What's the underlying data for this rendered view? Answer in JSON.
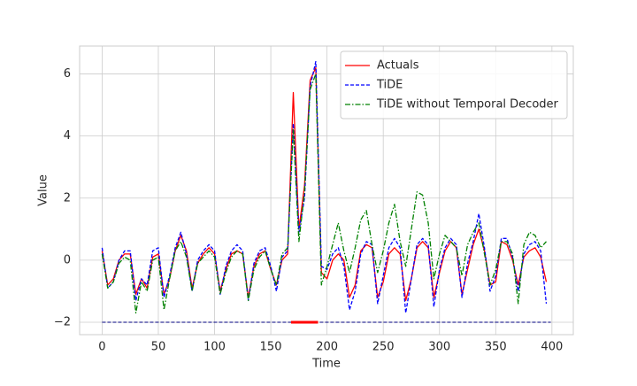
{
  "chart_data": {
    "type": "line",
    "xlabel": "Time",
    "ylabel": "Value",
    "x": [
      0,
      5,
      10,
      15,
      20,
      25,
      30,
      35,
      40,
      45,
      50,
      55,
      60,
      65,
      70,
      75,
      80,
      85,
      90,
      95,
      100,
      105,
      110,
      115,
      120,
      125,
      130,
      135,
      140,
      145,
      150,
      155,
      160,
      165,
      170,
      175,
      180,
      185,
      190,
      195,
      200,
      205,
      210,
      215,
      220,
      225,
      230,
      235,
      240,
      245,
      250,
      255,
      260,
      265,
      270,
      275,
      280,
      285,
      290,
      295,
      300,
      305,
      310,
      315,
      320,
      325,
      330,
      335,
      340,
      345,
      350,
      355,
      360,
      365,
      370,
      375,
      380,
      385,
      390,
      395
    ],
    "series": [
      {
        "name": "Actuals",
        "color": "#ff0000",
        "dash": "solid",
        "values": [
          0.3,
          -0.8,
          -0.6,
          0.0,
          0.2,
          0.2,
          -1.1,
          -0.6,
          -0.9,
          0.1,
          0.2,
          -1.1,
          -0.6,
          0.3,
          0.8,
          0.3,
          -0.9,
          -0.1,
          0.2,
          0.4,
          0.2,
          -1.0,
          -0.3,
          0.2,
          0.3,
          0.2,
          -1.2,
          -0.2,
          0.2,
          0.3,
          -0.3,
          -0.8,
          0.0,
          0.2,
          5.4,
          1.0,
          2.4,
          5.8,
          6.2,
          -0.4,
          -0.6,
          0.0,
          0.2,
          0.0,
          -1.2,
          -0.8,
          0.3,
          0.5,
          0.4,
          -1.2,
          -0.7,
          0.2,
          0.4,
          0.2,
          -1.3,
          -0.6,
          0.4,
          0.6,
          0.4,
          -1.2,
          -0.4,
          0.3,
          0.6,
          0.4,
          -1.1,
          -0.3,
          0.5,
          1.0,
          0.3,
          -0.8,
          -0.7,
          0.6,
          0.5,
          0.0,
          -0.8,
          0.1,
          0.3,
          0.4,
          0.1,
          -0.7
        ]
      },
      {
        "name": "TiDE",
        "color": "#0000ff",
        "dash": "dashed",
        "values": [
          0.4,
          -0.9,
          -0.7,
          0.0,
          0.3,
          0.3,
          -1.3,
          -0.6,
          -0.8,
          0.3,
          0.4,
          -1.2,
          -0.5,
          0.4,
          0.9,
          0.2,
          -1.0,
          0.0,
          0.3,
          0.5,
          0.3,
          -1.1,
          -0.2,
          0.3,
          0.5,
          0.3,
          -1.3,
          -0.1,
          0.3,
          0.4,
          -0.2,
          -1.0,
          0.1,
          0.3,
          4.4,
          0.9,
          2.0,
          5.6,
          6.4,
          -0.2,
          -0.3,
          0.2,
          0.4,
          -0.2,
          -1.6,
          -1.0,
          0.2,
          0.6,
          0.5,
          -1.4,
          -0.5,
          0.4,
          0.7,
          0.4,
          -1.7,
          -0.6,
          0.5,
          0.7,
          0.5,
          -1.5,
          -0.3,
          0.4,
          0.7,
          0.5,
          -1.2,
          -0.1,
          0.6,
          1.5,
          0.4,
          -1.0,
          -0.5,
          0.7,
          0.7,
          0.1,
          -1.0,
          0.2,
          0.5,
          0.6,
          0.3,
          -1.4
        ]
      },
      {
        "name": "TiDE without Temporal Decoder",
        "color": "#008000",
        "dash": "dashdot",
        "values": [
          0.2,
          -0.9,
          -0.7,
          -0.1,
          0.1,
          0.0,
          -1.7,
          -0.7,
          -1.0,
          0.0,
          0.1,
          -1.6,
          -0.6,
          0.3,
          0.6,
          0.1,
          -1.0,
          -0.1,
          0.1,
          0.3,
          0.1,
          -1.1,
          -0.4,
          0.1,
          0.3,
          0.2,
          -1.3,
          -0.3,
          0.1,
          0.3,
          -0.3,
          -0.8,
          0.2,
          0.4,
          4.2,
          0.6,
          2.2,
          5.5,
          6.0,
          -0.8,
          -0.2,
          0.5,
          1.2,
          0.3,
          -0.4,
          0.4,
          1.3,
          1.6,
          0.5,
          -0.4,
          0.3,
          1.2,
          1.8,
          0.6,
          -0.2,
          1.0,
          2.2,
          2.1,
          1.2,
          -0.6,
          0.2,
          0.8,
          0.6,
          0.4,
          -0.5,
          0.5,
          0.9,
          1.2,
          0.2,
          -0.8,
          -0.3,
          0.6,
          0.6,
          0.2,
          -1.4,
          0.5,
          0.9,
          0.8,
          0.4,
          0.6
        ]
      },
      {
        "color": "#000080",
        "dash": "dashed",
        "width": 1,
        "x": [
          0,
          399
        ],
        "values": [
          -2,
          -2
        ]
      },
      {
        "color": "#ff0000",
        "dash": "solid",
        "width": 3,
        "x": [
          168,
          192
        ],
        "values": [
          -2,
          -2
        ]
      }
    ],
    "xlim": [
      -20,
      419
    ],
    "ylim": [
      -2.4,
      6.9
    ],
    "xticks": [
      0,
      50,
      100,
      150,
      200,
      250,
      300,
      350,
      400
    ],
    "yticks": [
      {
        "value": -2,
        "label": "−2"
      },
      0,
      2,
      4,
      6
    ],
    "grid": true,
    "legend": "upper right"
  }
}
